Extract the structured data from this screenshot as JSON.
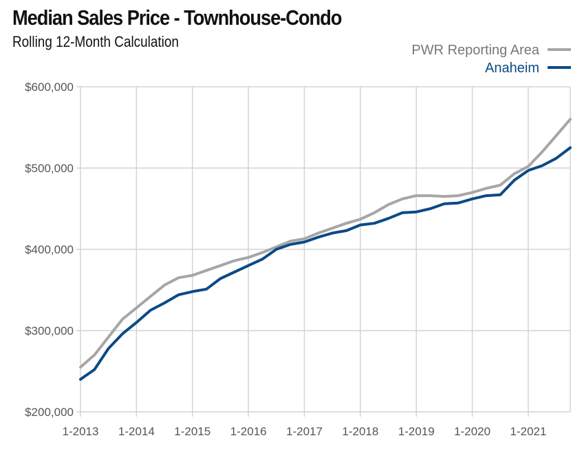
{
  "title": "Median Sales Price - Townhouse-Condo",
  "subtitle": "Rolling 12-Month Calculation",
  "chart_data": {
    "type": "line",
    "title": "Median Sales Price - Townhouse-Condo",
    "subtitle": "Rolling 12-Month Calculation",
    "xlabel": "",
    "ylabel": "",
    "x_ticks": [
      "1-2013",
      "1-2014",
      "1-2015",
      "1-2016",
      "1-2017",
      "1-2018",
      "1-2019",
      "1-2020",
      "1-2021"
    ],
    "x_start": "1-2013",
    "x_end": "10-2021",
    "ylim": [
      200000,
      600000
    ],
    "y_ticks": [
      200000,
      300000,
      400000,
      500000,
      600000
    ],
    "y_tick_labels": [
      "$200,000",
      "$300,000",
      "$400,000",
      "$500,000",
      "$600,000"
    ],
    "grid": true,
    "legend_position": "top-right",
    "series": [
      {
        "name": "PWR Reporting Area",
        "color": "#a6a6a6",
        "points": [
          [
            "1-2013",
            255000
          ],
          [
            "4-2013",
            270000
          ],
          [
            "7-2013",
            292000
          ],
          [
            "10-2013",
            314000
          ],
          [
            "1-2014",
            328000
          ],
          [
            "4-2014",
            342000
          ],
          [
            "7-2014",
            356000
          ],
          [
            "10-2014",
            365000
          ],
          [
            "1-2015",
            368000
          ],
          [
            "4-2015",
            374000
          ],
          [
            "7-2015",
            380000
          ],
          [
            "10-2015",
            386000
          ],
          [
            "1-2016",
            390000
          ],
          [
            "4-2016",
            396000
          ],
          [
            "7-2016",
            403000
          ],
          [
            "10-2016",
            410000
          ],
          [
            "1-2017",
            413000
          ],
          [
            "4-2017",
            420000
          ],
          [
            "7-2017",
            426000
          ],
          [
            "10-2017",
            432000
          ],
          [
            "1-2018",
            437000
          ],
          [
            "4-2018",
            445000
          ],
          [
            "7-2018",
            455000
          ],
          [
            "10-2018",
            462000
          ],
          [
            "1-2019",
            466000
          ],
          [
            "4-2019",
            466000
          ],
          [
            "7-2019",
            465000
          ],
          [
            "10-2019",
            466000
          ],
          [
            "1-2020",
            470000
          ],
          [
            "4-2020",
            475000
          ],
          [
            "7-2020",
            479000
          ],
          [
            "10-2020",
            493000
          ],
          [
            "1-2021",
            502000
          ],
          [
            "4-2021",
            520000
          ],
          [
            "7-2021",
            540000
          ],
          [
            "10-2021",
            560000
          ]
        ]
      },
      {
        "name": "Anaheim",
        "color": "#0b4a85",
        "points": [
          [
            "1-2013",
            240000
          ],
          [
            "4-2013",
            252000
          ],
          [
            "7-2013",
            278000
          ],
          [
            "10-2013",
            296000
          ],
          [
            "1-2014",
            310000
          ],
          [
            "4-2014",
            325000
          ],
          [
            "7-2014",
            334000
          ],
          [
            "10-2014",
            344000
          ],
          [
            "1-2015",
            348000
          ],
          [
            "4-2015",
            351000
          ],
          [
            "7-2015",
            364000
          ],
          [
            "10-2015",
            372000
          ],
          [
            "1-2016",
            380000
          ],
          [
            "4-2016",
            388000
          ],
          [
            "7-2016",
            400000
          ],
          [
            "10-2016",
            406000
          ],
          [
            "1-2017",
            409000
          ],
          [
            "4-2017",
            415000
          ],
          [
            "7-2017",
            420000
          ],
          [
            "10-2017",
            423000
          ],
          [
            "1-2018",
            430000
          ],
          [
            "4-2018",
            432000
          ],
          [
            "7-2018",
            438000
          ],
          [
            "10-2018",
            445000
          ],
          [
            "1-2019",
            446000
          ],
          [
            "4-2019",
            450000
          ],
          [
            "7-2019",
            456000
          ],
          [
            "10-2019",
            457000
          ],
          [
            "1-2020",
            462000
          ],
          [
            "4-2020",
            466000
          ],
          [
            "7-2020",
            467000
          ],
          [
            "10-2020",
            485000
          ],
          [
            "1-2021",
            497000
          ],
          [
            "4-2021",
            503000
          ],
          [
            "7-2021",
            512000
          ],
          [
            "10-2021",
            525000
          ]
        ]
      }
    ]
  }
}
